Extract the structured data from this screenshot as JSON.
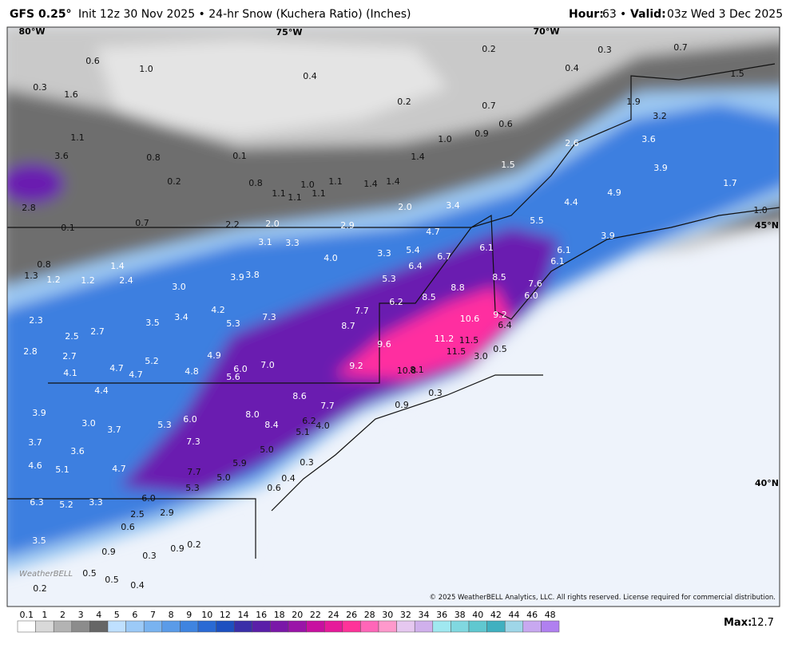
{
  "header": {
    "model": "GFS 0.25°",
    "description": "Init 12z 30 Nov 2025 • 24-hr Snow (Kuchera Ratio) (Inches)",
    "hour_label": "Hour:",
    "hour": "63",
    "separator": "•",
    "valid_label": "Valid:",
    "valid": "03z Wed 3 Dec 2025"
  },
  "map": {
    "grid_labels": [
      "80°W",
      "75°W",
      "70°W",
      "45°N",
      "40°N"
    ],
    "labels": [
      "0.6",
      "1.0",
      "0.4",
      "0.2",
      "0.3",
      "0.7",
      "0.3",
      "1.6",
      "0.2",
      "0.7",
      "0.4",
      "1.5",
      "1.9",
      "3.2",
      "1.1",
      "1.0",
      "0.9",
      "0.6",
      "3.6",
      "0.8",
      "0.1",
      "1.4",
      "1.5",
      "2.6",
      "3.6",
      "3.9",
      "0.2",
      "0.8",
      "1.0",
      "1.1",
      "1.4",
      "1.4",
      "4.9",
      "1.7",
      "4.4",
      "1.1",
      "1.1",
      "1.1",
      "2.0",
      "3.4",
      "2.8",
      "1.0",
      "0.1",
      "0.7",
      "2.2",
      "2.0",
      "2.9",
      "5.5",
      "3.9",
      "4.7",
      "3.1",
      "3.3",
      "3.3",
      "5.4",
      "6.1",
      "6.1",
      "6.7",
      "4.0",
      "1.4",
      "6.4",
      "6.1",
      "0.8",
      "1.3",
      "1.2",
      "1.2",
      "2.4",
      "3.9",
      "3.8",
      "5.3",
      "8.5",
      "7.6",
      "8.8",
      "3.0",
      "8.5",
      "6.0",
      "6.2",
      "4.2",
      "7.7",
      "9.2",
      "2.3",
      "7.3",
      "3.5",
      "3.4",
      "5.3",
      "8.7",
      "10.6",
      "6.4",
      "2.7",
      "2.5",
      "11.2",
      "11.5",
      "9.6",
      "0.5",
      "2.8",
      "2.7",
      "11.5",
      "4.9",
      "5.2",
      "7.0",
      "9.2",
      "3.0",
      "4.7",
      "10.8",
      "8.1",
      "4.1",
      "4.7",
      "4.8",
      "6.0",
      "5.6",
      "4.4",
      "0.3",
      "8.6",
      "3.9",
      "7.7",
      "0.9",
      "8.0",
      "6.0",
      "3.0",
      "5.3",
      "6.2",
      "4.0",
      "3.7",
      "8.4",
      "5.1",
      "3.7",
      "7.3",
      "3.6",
      "5.0",
      "0.3",
      "4.6",
      "5.1",
      "4.7",
      "5.9",
      "7.7",
      "5.0",
      "0.4",
      "5.3",
      "0.6",
      "6.3",
      "5.2",
      "3.3",
      "6.0",
      "2.5",
      "2.9",
      "0.6",
      "3.5",
      "0.9",
      "0.3",
      "0.9",
      "0.2",
      "0.5",
      "0.5",
      "0.4",
      "0.2"
    ],
    "watermark": "WeatherBELL",
    "copyright": "© 2025 WeatherBELL Analytics, LLC. All rights reserved. License required for commercial distribution."
  },
  "colorbar": {
    "ticks": [
      "0.1",
      "1",
      "2",
      "3",
      "4",
      "5",
      "6",
      "7",
      "8",
      "9",
      "10",
      "12",
      "14",
      "16",
      "18",
      "20",
      "22",
      "24",
      "26",
      "28",
      "30",
      "32",
      "34",
      "36",
      "38",
      "40",
      "42",
      "44",
      "46",
      "48"
    ],
    "colors": [
      "#ffffff",
      "#d9d9d9",
      "#b3b3b3",
      "#8c8c8c",
      "#666666",
      "#bfe0ff",
      "#9ccaf7",
      "#79b3f0",
      "#5a9be8",
      "#3f84e0",
      "#2a6ad4",
      "#1d50c0",
      "#3a2fa8",
      "#5a1fa8",
      "#7a18a8",
      "#9a14a8",
      "#c810a0",
      "#e61a9a",
      "#ff3399",
      "#ff66b8",
      "#ff99cc",
      "#e6c8f0",
      "#d0b0ec",
      "#a0e8f0",
      "#80d8e0",
      "#60c8d0",
      "#40b0c0",
      "#9fd6e8",
      "#c8a8f0",
      "#b080f0"
    ],
    "max_label": "Max:",
    "max": "12.7"
  }
}
